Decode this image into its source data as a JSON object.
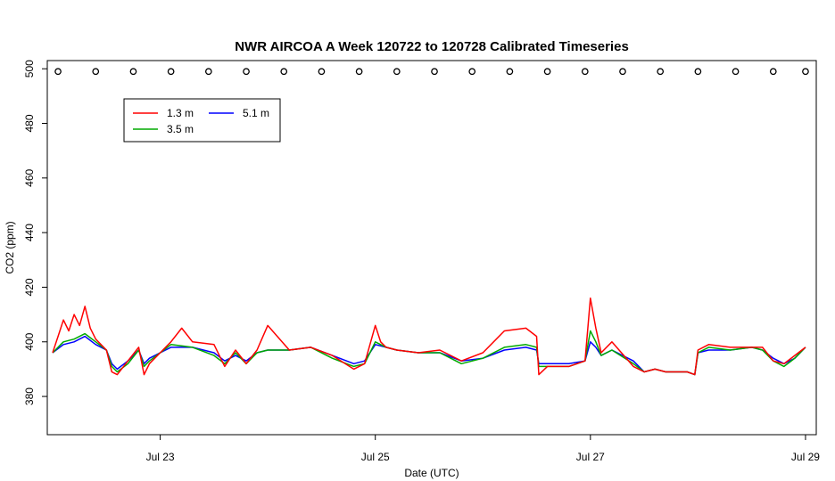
{
  "chart_data": {
    "type": "line",
    "title": "NWR AIRCOA A  Week 120722 to 120728  Calibrated Timeseries",
    "xlabel": "Date (UTC)",
    "ylabel": "CO2 (ppm)",
    "x_unit": "days since 2012-07-22 00:00 UTC",
    "xlim": [
      -0.05,
      7.1
    ],
    "ylim": [
      366,
      503
    ],
    "x_ticks": [
      {
        "value": 1,
        "label": "Jul 23"
      },
      {
        "value": 3,
        "label": "Jul 25"
      },
      {
        "value": 5,
        "label": "Jul 27"
      },
      {
        "value": 7,
        "label": "Jul 29"
      }
    ],
    "y_ticks": [
      {
        "value": 380,
        "label": "380"
      },
      {
        "value": 400,
        "label": "400"
      },
      {
        "value": 420,
        "label": "420"
      },
      {
        "value": 440,
        "label": "440"
      },
      {
        "value": 460,
        "label": "460"
      },
      {
        "value": 480,
        "label": "480"
      },
      {
        "value": 500,
        "label": "500"
      }
    ],
    "grid": false,
    "legend_position": "top-left",
    "legend": [
      {
        "label": "1.3 m",
        "color": "#ff0000"
      },
      {
        "label": "3.5 m",
        "color": "#00aa00"
      },
      {
        "label": "5.1 m",
        "color": "#0000ff"
      }
    ],
    "series": [
      {
        "name": "5.1 m",
        "color": "#0000ff",
        "x": [
          0.0,
          0.1,
          0.2,
          0.3,
          0.4,
          0.5,
          0.55,
          0.6,
          0.7,
          0.8,
          0.85,
          0.9,
          1.0,
          1.1,
          1.3,
          1.5,
          1.6,
          1.7,
          1.8,
          1.9,
          2.0,
          2.2,
          2.4,
          2.6,
          2.8,
          2.9,
          3.0,
          3.1,
          3.2,
          3.4,
          3.6,
          3.8,
          4.0,
          4.2,
          4.4,
          4.5,
          4.52,
          4.6,
          4.8,
          4.95,
          5.0,
          5.05,
          5.1,
          5.2,
          5.4,
          5.5,
          5.6,
          5.7,
          5.9,
          5.97,
          6.0,
          6.1,
          6.3,
          6.5,
          6.6,
          6.7,
          6.8,
          6.9,
          7.0
        ],
        "y": [
          396,
          399,
          400,
          402,
          399,
          397,
          392,
          390,
          393,
          397,
          392,
          394,
          396,
          398,
          398,
          396,
          393,
          395,
          393,
          396,
          397,
          397,
          398,
          395,
          392,
          393,
          399,
          398,
          397,
          396,
          396,
          393,
          394,
          397,
          398,
          397,
          392,
          392,
          392,
          393,
          400,
          398,
          395,
          397,
          393,
          389,
          390,
          389,
          389,
          388,
          396,
          397,
          397,
          398,
          397,
          394,
          392,
          394,
          398
        ]
      },
      {
        "name": "3.5 m",
        "color": "#00aa00",
        "x": [
          0.0,
          0.1,
          0.2,
          0.3,
          0.4,
          0.5,
          0.55,
          0.6,
          0.7,
          0.8,
          0.85,
          0.9,
          1.0,
          1.1,
          1.3,
          1.5,
          1.6,
          1.7,
          1.8,
          1.9,
          2.0,
          2.2,
          2.4,
          2.6,
          2.8,
          2.9,
          3.0,
          3.1,
          3.2,
          3.4,
          3.6,
          3.8,
          4.0,
          4.2,
          4.4,
          4.5,
          4.52,
          4.6,
          4.8,
          4.95,
          5.0,
          5.05,
          5.1,
          5.2,
          5.4,
          5.5,
          5.6,
          5.7,
          5.9,
          5.97,
          6.0,
          6.1,
          6.3,
          6.5,
          6.6,
          6.7,
          6.8,
          6.9,
          7.0
        ],
        "y": [
          396,
          400,
          401,
          403,
          400,
          397,
          391,
          389,
          392,
          397,
          391,
          393,
          396,
          399,
          398,
          395,
          392,
          396,
          392,
          396,
          397,
          397,
          398,
          394,
          391,
          392,
          400,
          398,
          397,
          396,
          396,
          392,
          394,
          398,
          399,
          398,
          391,
          391,
          391,
          393,
          404,
          400,
          395,
          397,
          392,
          389,
          390,
          389,
          389,
          388,
          396,
          398,
          397,
          398,
          397,
          393,
          391,
          394,
          398
        ]
      },
      {
        "name": "1.3 m",
        "color": "#ff0000",
        "x": [
          0.0,
          0.05,
          0.1,
          0.15,
          0.2,
          0.25,
          0.3,
          0.35,
          0.4,
          0.5,
          0.55,
          0.6,
          0.7,
          0.8,
          0.85,
          0.9,
          1.0,
          1.1,
          1.2,
          1.3,
          1.5,
          1.6,
          1.7,
          1.8,
          1.9,
          2.0,
          2.2,
          2.4,
          2.6,
          2.8,
          2.9,
          3.0,
          3.05,
          3.1,
          3.2,
          3.4,
          3.6,
          3.8,
          4.0,
          4.2,
          4.4,
          4.5,
          4.52,
          4.6,
          4.8,
          4.95,
          5.0,
          5.05,
          5.1,
          5.2,
          5.4,
          5.5,
          5.6,
          5.7,
          5.9,
          5.97,
          6.0,
          6.1,
          6.3,
          6.5,
          6.6,
          6.7,
          6.8,
          6.9,
          7.0
        ],
        "y": [
          396,
          402,
          408,
          404,
          410,
          406,
          413,
          405,
          401,
          397,
          389,
          388,
          393,
          398,
          388,
          392,
          396,
          400,
          405,
          400,
          399,
          391,
          397,
          392,
          397,
          406,
          397,
          398,
          395,
          390,
          392,
          406,
          400,
          398,
          397,
          396,
          397,
          393,
          396,
          404,
          405,
          402,
          388,
          391,
          391,
          393,
          416,
          405,
          396,
          400,
          391,
          389,
          390,
          389,
          389,
          388,
          397,
          399,
          398,
          398,
          398,
          393,
          392,
          395,
          398
        ]
      },
      {
        "name": "calibration cycles",
        "color": "#000000",
        "marker": "circle",
        "x": [
          0.05,
          0.4,
          0.75,
          1.1,
          1.45,
          1.8,
          2.15,
          2.5,
          2.85,
          3.2,
          3.55,
          3.9,
          4.25,
          4.6,
          4.95,
          5.3,
          5.65,
          6.0,
          6.35,
          6.7,
          7.0
        ],
        "y": [
          499,
          499,
          499,
          499,
          499,
          499,
          499,
          499,
          499,
          499,
          499,
          499,
          499,
          499,
          499,
          499,
          499,
          499,
          499,
          499,
          499
        ]
      }
    ]
  }
}
